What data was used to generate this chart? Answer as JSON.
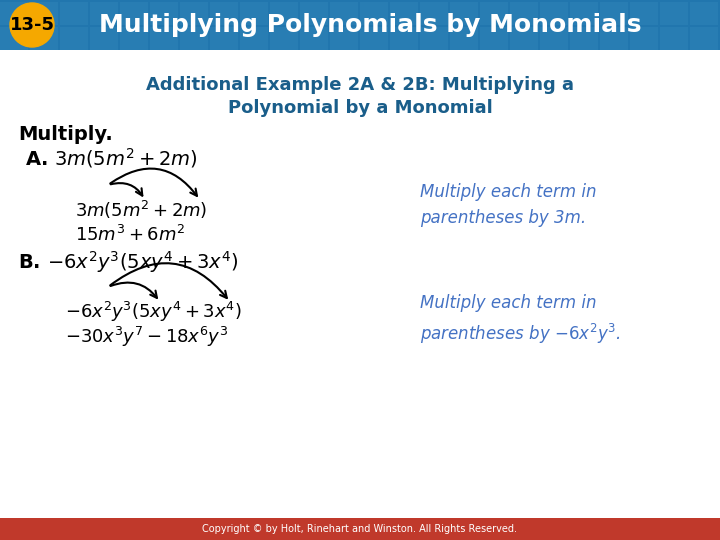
{
  "header_bg_color": "#2176AE",
  "header_text": "Multiplying Polynomials by Monomials",
  "badge_color": "#F5A800",
  "badge_text": "13-5",
  "body_bg_color": "#FFFFFF",
  "subtitle_color": "#1A5E8A",
  "subtitle_line1": "Additional Example 2A & 2B: Multiplying a",
  "subtitle_line2": "Polynomial by a Monomial",
  "footer_text": "Copyright © by Holt, Rinehart and Winston. All Rights Reserved.",
  "footer_bg": "#C0392B",
  "footer_text_color": "#FFFFFF"
}
